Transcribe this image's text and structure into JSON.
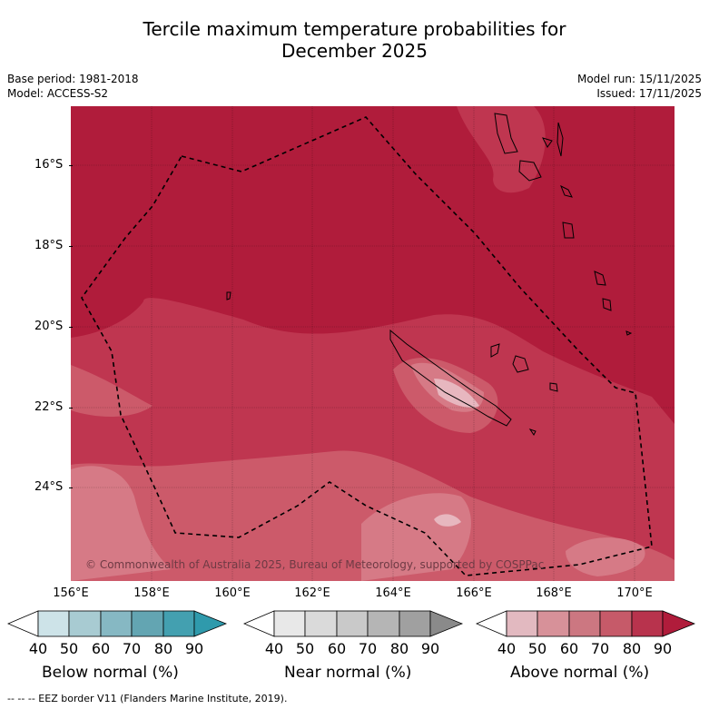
{
  "title_line1": "Tercile maximum temperature probabilities for",
  "title_line2": "December 2025",
  "meta": {
    "base_period": "Base period: 1981-2018",
    "model": "Model: ACCESS-S2",
    "model_run": "Model run: 15/11/2025",
    "issued": "Issued: 17/11/2025"
  },
  "map": {
    "lat_labels": [
      "16°S",
      "18°S",
      "20°S",
      "22°S",
      "24°S"
    ],
    "lon_labels": [
      "156°E",
      "158°E",
      "160°E",
      "162°E",
      "164°E",
      "166°E",
      "168°E",
      "170°E"
    ],
    "copyright": "© Commonwealth of Australia 2025, Bureau of Meteorology, supported by COSPPac"
  },
  "legends": [
    {
      "name": "below",
      "label": "Below normal (%)",
      "ticks": [
        "40",
        "50",
        "60",
        "70",
        "80",
        "90"
      ],
      "colors": [
        "#ffffff",
        "#cde3e8",
        "#a8cbd2",
        "#86b8c3",
        "#63a5b2",
        "#43a0b0",
        "#2f9aac"
      ]
    },
    {
      "name": "near",
      "label": "Near normal (%)",
      "ticks": [
        "40",
        "50",
        "60",
        "70",
        "80",
        "90"
      ],
      "colors": [
        "#ffffff",
        "#e8e8e8",
        "#dadada",
        "#c9c9c9",
        "#b5b5b5",
        "#a0a0a0",
        "#8a8a8a"
      ]
    },
    {
      "name": "above",
      "label": "Above normal (%)",
      "ticks": [
        "40",
        "50",
        "60",
        "70",
        "80",
        "90"
      ],
      "colors": [
        "#ffffff",
        "#e2b9c0",
        "#d79199",
        "#cc7781",
        "#c65a69",
        "#b8334d",
        "#b01c3b"
      ]
    }
  ],
  "footer": "--  --  -- EEZ border V11 (Flanders Marine Institute, 2019)."
}
